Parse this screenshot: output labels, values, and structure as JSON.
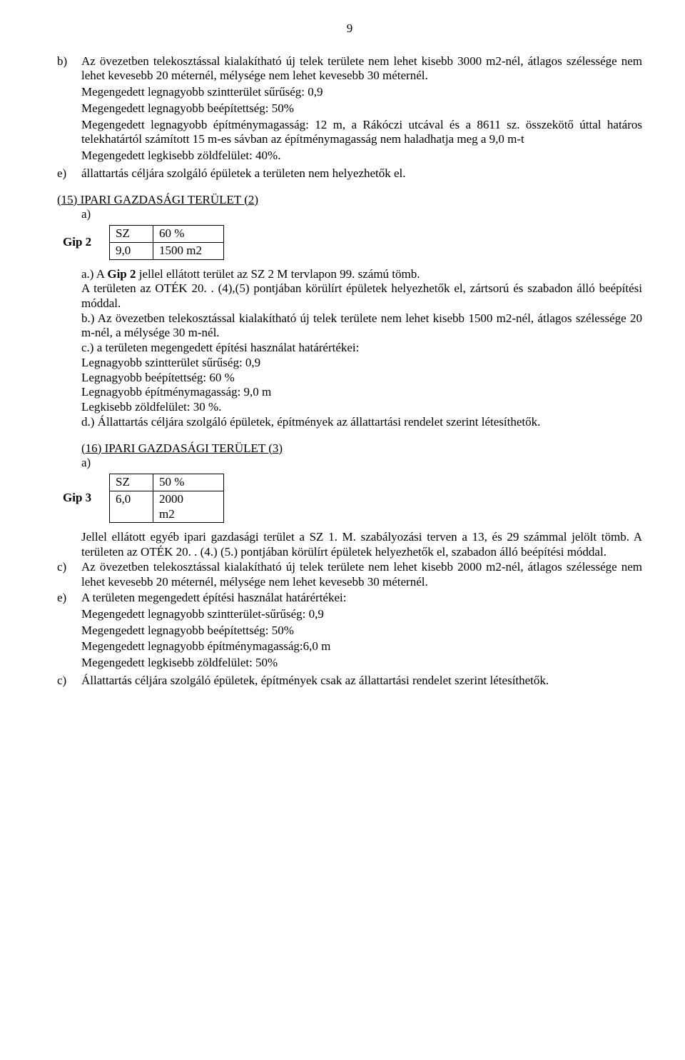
{
  "page_number": "9",
  "section_b": {
    "marker": "b)",
    "p1": "Az övezetben telekosztással kialakítható új telek területe nem lehet kisebb 3000 m2-nél, átlagos szélessége nem lehet kevesebb 20 méternél, mélysége nem lehet kevesebb 30 méternél.",
    "p2": "Megengedett legnagyobb szintterület sűrűség: 0,9",
    "p3": "Megengedett legnagyobb beépítettség: 50%",
    "p4": "Megengedett legnagyobb építménymagasság: 12 m, a Rákóczi utcával és a 8611 sz. összekötő úttal határos telekhatártól számított 15 m-es sávban az építménymagasság nem haladhatja meg a 9,0 m-t",
    "p5": "Megengedett legkisebb zöldfelület: 40%."
  },
  "section_e_top": {
    "marker": "e)",
    "text": "állattartás céljára szolgáló épületek a területen nem helyezhetők el."
  },
  "s15": {
    "heading": "(15) IPARI GAZDASÁGI TERÜLET (2)",
    "a_label": "a)",
    "table": {
      "label": "Gip 2",
      "r1c1": "SZ",
      "r1c2": "60 %",
      "r2c1": "9,0",
      "r2c2": "1500 m2"
    },
    "pa_pre": "a.) A ",
    "pa_bold": "Gip 2",
    "pa_post": " jellel ellátott terület az SZ 2 M tervlapon 99. számú tömb.",
    "pa2": "A területen az OTÉK 20. . (4),(5) pontjában körülírt épületek helyezhetők el, zártsorú és szabadon álló beépítési móddal.",
    "pb": "b.) Az övezetben telekosztással kialakítható új telek területe nem lehet kisebb 1500 m2-nél, átlagos szélessége 20 m-nél, a mélysége 30 m-nél.",
    "pc": "c.) a területen megengedett építési használat határértékei:",
    "pc1": "Legnagyobb szintterület sűrűség: 0,9",
    "pc2": "Legnagyobb beépítettség: 60 %",
    "pc3": "Legnagyobb építménymagasság: 9,0 m",
    "pc4": "Legkisebb zöldfelület: 30 %.",
    "pd": "d.) Állattartás céljára szolgáló épületek, építmények az állattartási rendelet szerint létesíthetők."
  },
  "s16": {
    "heading": "(16) IPARI GAZDASÁGI TERÜLET (3)",
    "a_label": "a)",
    "table": {
      "label": "Gip 3",
      "r1c1": "SZ",
      "r1c2": "50 %",
      "r2c1": "6,0",
      "r2c2a": "2000",
      "r2c2b": "m2"
    },
    "intro": "Jellel ellátott egyéb ipari gazdasági terület a SZ 1. M. szabályozási terven a 13, és 29 számmal jelölt tömb. A területen az OTÉK 20. . (4.) (5.) pontjában körülírt épületek helyezhetők el, szabadon álló beépítési móddal.",
    "c_marker": "c)",
    "c_text": "Az övezetben telekosztással kialakítható új telek területe nem lehet kisebb 2000 m2-nél, átlagos szélessége nem lehet kevesebb 20 méternél, mélysége nem lehet kevesebb 30 méternél.",
    "e_marker": "e)",
    "e_text": "A területen megengedett építési használat határértékei:",
    "e1": "Megengedett legnagyobb szintterület-sűrűség: 0,9",
    "e2": "Megengedett legnagyobb beépítettség: 50%",
    "e3": "Megengedett legnagyobb építménymagasság:6,0 m",
    "e4": "Megengedett legkisebb zöldfelület: 50%",
    "c2_marker": "c)",
    "c2_text": "Állattartás céljára szolgáló épületek, építmények csak az állattartási rendelet szerint létesíthetők."
  }
}
